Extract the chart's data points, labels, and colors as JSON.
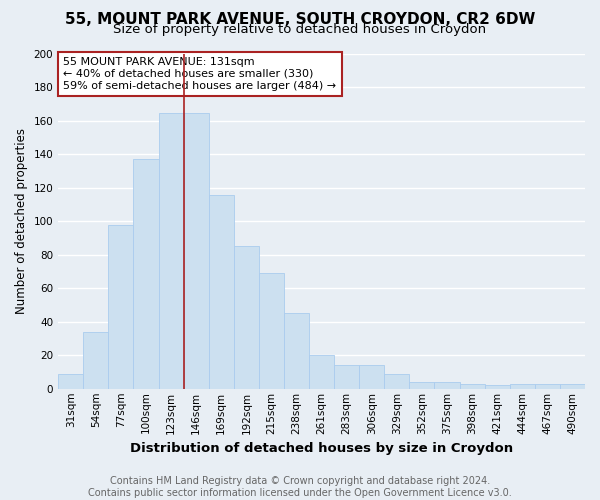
{
  "title1": "55, MOUNT PARK AVENUE, SOUTH CROYDON, CR2 6DW",
  "title2": "Size of property relative to detached houses in Croydon",
  "xlabel": "Distribution of detached houses by size in Croydon",
  "ylabel": "Number of detached properties",
  "footer1": "Contains HM Land Registry data © Crown copyright and database right 2024.",
  "footer2": "Contains public sector information licensed under the Open Government Licence v3.0.",
  "bar_labels": [
    "31sqm",
    "54sqm",
    "77sqm",
    "100sqm",
    "123sqm",
    "146sqm",
    "169sqm",
    "192sqm",
    "215sqm",
    "238sqm",
    "261sqm",
    "283sqm",
    "306sqm",
    "329sqm",
    "352sqm",
    "375sqm",
    "398sqm",
    "421sqm",
    "444sqm",
    "467sqm",
    "490sqm"
  ],
  "bar_values": [
    9,
    34,
    98,
    137,
    165,
    165,
    116,
    85,
    69,
    45,
    20,
    14,
    14,
    9,
    4,
    4,
    3,
    2,
    3,
    3,
    3
  ],
  "bar_color": "#cce0f0",
  "bar_edgecolor": "#aaccee",
  "annotation_box_text": "55 MOUNT PARK AVENUE: 131sqm\n← 40% of detached houses are smaller (330)\n59% of semi-detached houses are larger (484) →",
  "vline_x": 4.5,
  "vline_color": "#aa2222",
  "annotation_box_color": "#ffffff",
  "annotation_box_edgecolor": "#aa2222",
  "ylim": [
    0,
    200
  ],
  "yticks": [
    0,
    20,
    40,
    60,
    80,
    100,
    120,
    140,
    160,
    180,
    200
  ],
  "background_color": "#e8eef4",
  "grid_color": "#ffffff",
  "title_fontsize": 11,
  "subtitle_fontsize": 9.5,
  "annotation_fontsize": 8,
  "tick_fontsize": 7.5,
  "ylabel_fontsize": 8.5,
  "xlabel_fontsize": 9.5,
  "footer_fontsize": 7
}
